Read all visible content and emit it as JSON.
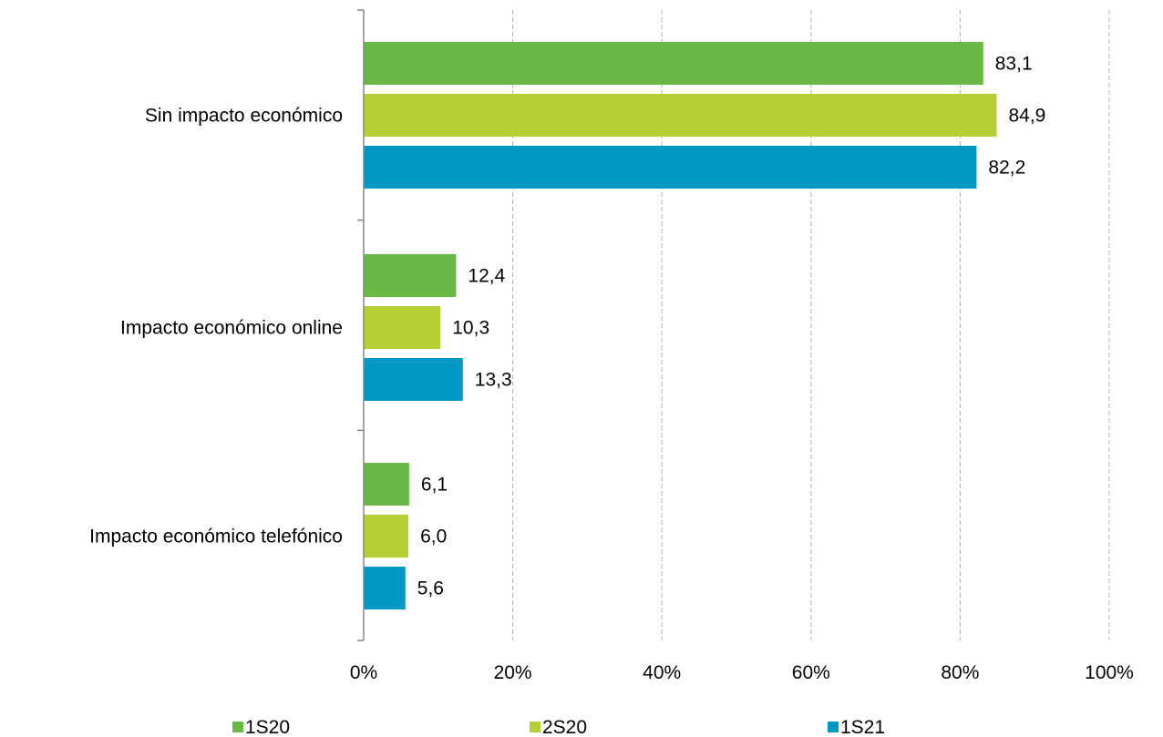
{
  "chart_data": {
    "type": "bar",
    "orientation": "horizontal",
    "categories": [
      "Sin impacto económico",
      "Impacto económico online",
      "Impacto económico telefónico"
    ],
    "series": [
      {
        "name": "1S20",
        "color": "#6ab845",
        "values": [
          83.1,
          12.4,
          6.1
        ],
        "labels": [
          "83,1",
          "12,4",
          "6,1"
        ]
      },
      {
        "name": "2S20",
        "color": "#b5cf35",
        "values": [
          84.9,
          10.3,
          6.0
        ],
        "labels": [
          "84,9",
          "10,3",
          "6,0"
        ]
      },
      {
        "name": "1S21",
        "color": "#0399c4",
        "values": [
          82.2,
          13.3,
          5.6
        ],
        "labels": [
          "82,2",
          "13,3",
          "5,6"
        ]
      }
    ],
    "xlim": [
      0,
      100
    ],
    "x_ticks": [
      0,
      20,
      40,
      60,
      80,
      100
    ],
    "x_tick_labels": [
      "0%",
      "20%",
      "40%",
      "60%",
      "80%",
      "100%"
    ],
    "grid": "vertical dashed",
    "legend_position": "bottom",
    "title": "",
    "xlabel": "",
    "ylabel": ""
  }
}
